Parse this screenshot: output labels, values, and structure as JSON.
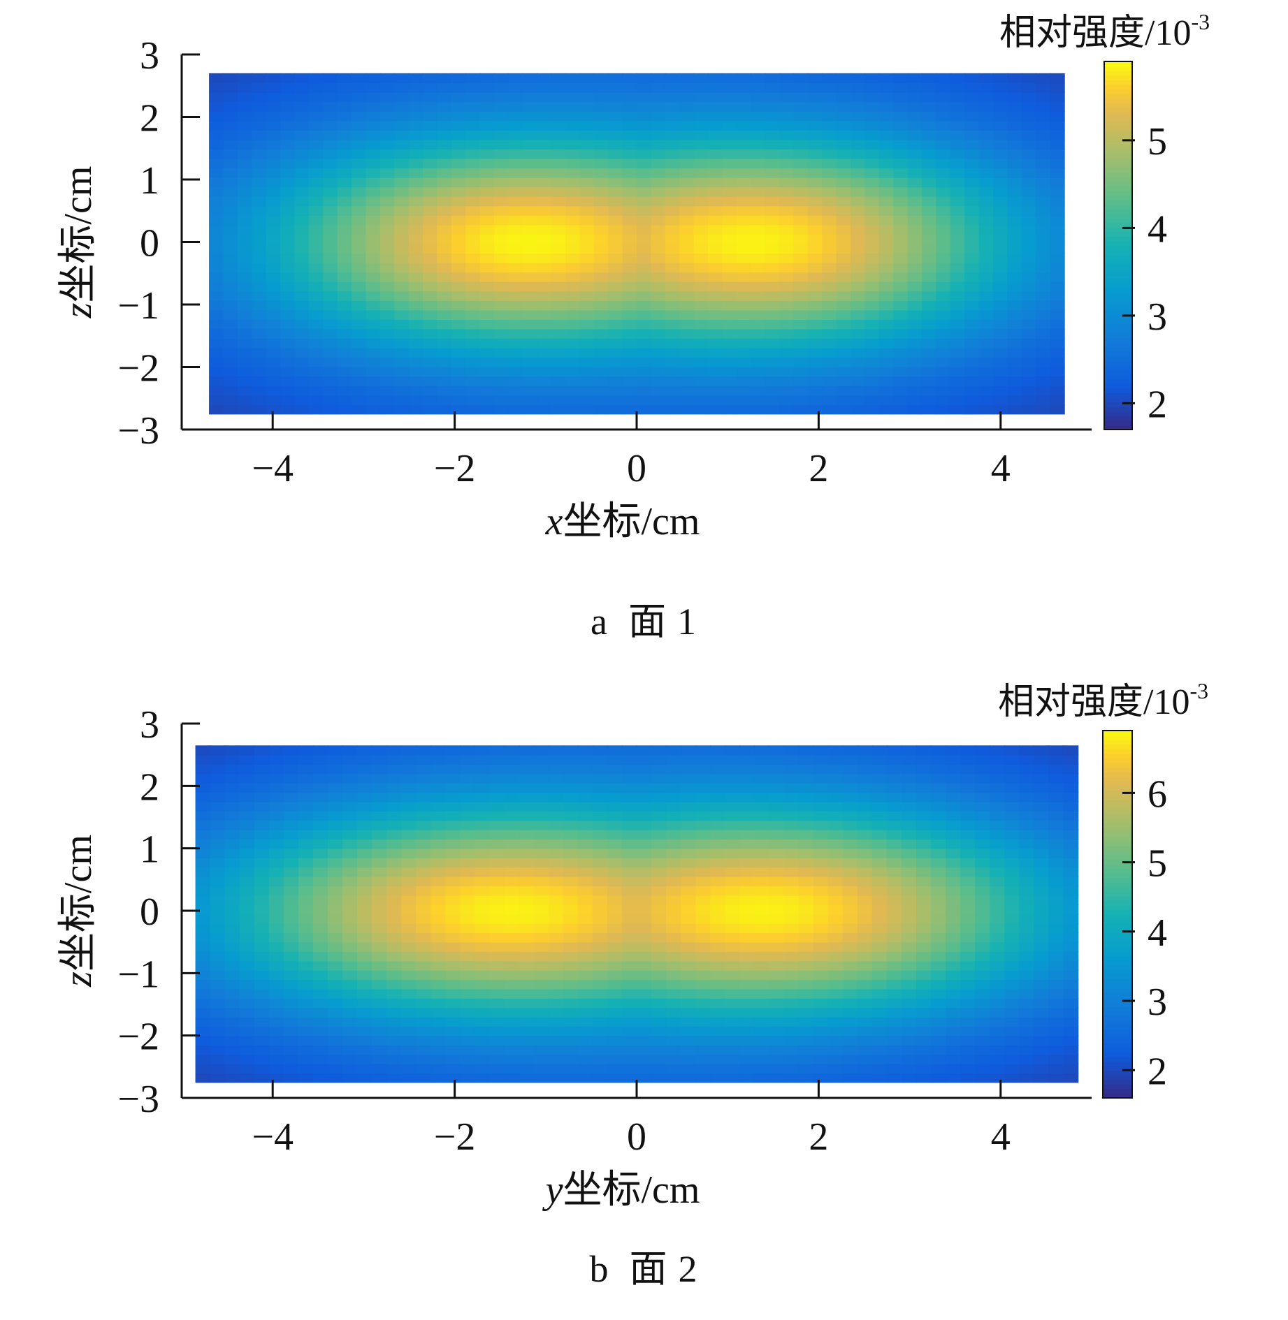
{
  "chart_data": [
    {
      "type": "heatmap",
      "panel": "a",
      "caption_letter": "a",
      "caption_text": "面",
      "caption_number": "1",
      "xlabel_var": "x",
      "xlabel_rest": "坐标/cm",
      "ylabel_var": "z",
      "ylabel_rest": "坐标/cm",
      "colorbar_title": "相对强度/10",
      "colorbar_exponent": "-3",
      "xlim": [
        -5,
        5
      ],
      "ylim": [
        -3,
        3
      ],
      "x_extent": [
        -4.7,
        4.7
      ],
      "y_extent": [
        -2.75,
        2.7
      ],
      "x_ticks": [
        -4,
        -2,
        0,
        2,
        4
      ],
      "x_tick_labels": [
        "−4",
        "−2",
        "0",
        "2",
        "4"
      ],
      "y_ticks": [
        -3,
        -2,
        -1,
        0,
        1,
        2,
        3
      ],
      "y_tick_labels": [
        "−3",
        "−2",
        "−1",
        "0",
        "1",
        "2",
        "3"
      ],
      "colorbar_range": [
        1.7,
        5.9
      ],
      "colorbar_ticks": [
        2,
        3,
        4,
        5
      ],
      "colorbar_tick_labels": [
        "2",
        "3",
        "4",
        "5"
      ],
      "colormap": "parula",
      "peaks": [
        {
          "x": -1.5,
          "z": 0.0,
          "value": 5.8
        },
        {
          "x": 1.6,
          "z": 0.0,
          "value": 5.8
        }
      ],
      "saddle": {
        "x": 0.0,
        "z": 0.0,
        "value": 5.3
      },
      "min_value": 1.8
    },
    {
      "type": "heatmap",
      "panel": "b",
      "caption_letter": "b",
      "caption_text": "面",
      "caption_number": "2",
      "xlabel_var": "y",
      "xlabel_rest": "坐标/cm",
      "ylabel_var": "z",
      "ylabel_rest": "坐标/cm",
      "colorbar_title": "相对强度/10",
      "colorbar_exponent": "-3",
      "xlim": [
        -5,
        5
      ],
      "ylim": [
        -3,
        3
      ],
      "x_extent": [
        -4.85,
        4.85
      ],
      "y_extent": [
        -2.75,
        2.65
      ],
      "x_ticks": [
        -4,
        -2,
        0,
        2,
        4
      ],
      "x_tick_labels": [
        "−4",
        "−2",
        "0",
        "2",
        "4"
      ],
      "y_ticks": [
        -3,
        -2,
        -1,
        0,
        1,
        2,
        3
      ],
      "y_tick_labels": [
        "−3",
        "−2",
        "−1",
        "0",
        "1",
        "2",
        "3"
      ],
      "colorbar_range": [
        1.6,
        6.9
      ],
      "colorbar_ticks": [
        2,
        3,
        4,
        5,
        6
      ],
      "colorbar_tick_labels": [
        "2",
        "3",
        "4",
        "5",
        "6"
      ],
      "colormap": "parula",
      "peaks": [
        {
          "x": -1.8,
          "z": 0.0,
          "value": 6.8
        },
        {
          "x": 1.8,
          "z": 0.0,
          "value": 6.8
        }
      ],
      "saddle": {
        "x": 0.0,
        "z": 0.0,
        "value": 5.9
      },
      "min_value": 1.7
    }
  ]
}
